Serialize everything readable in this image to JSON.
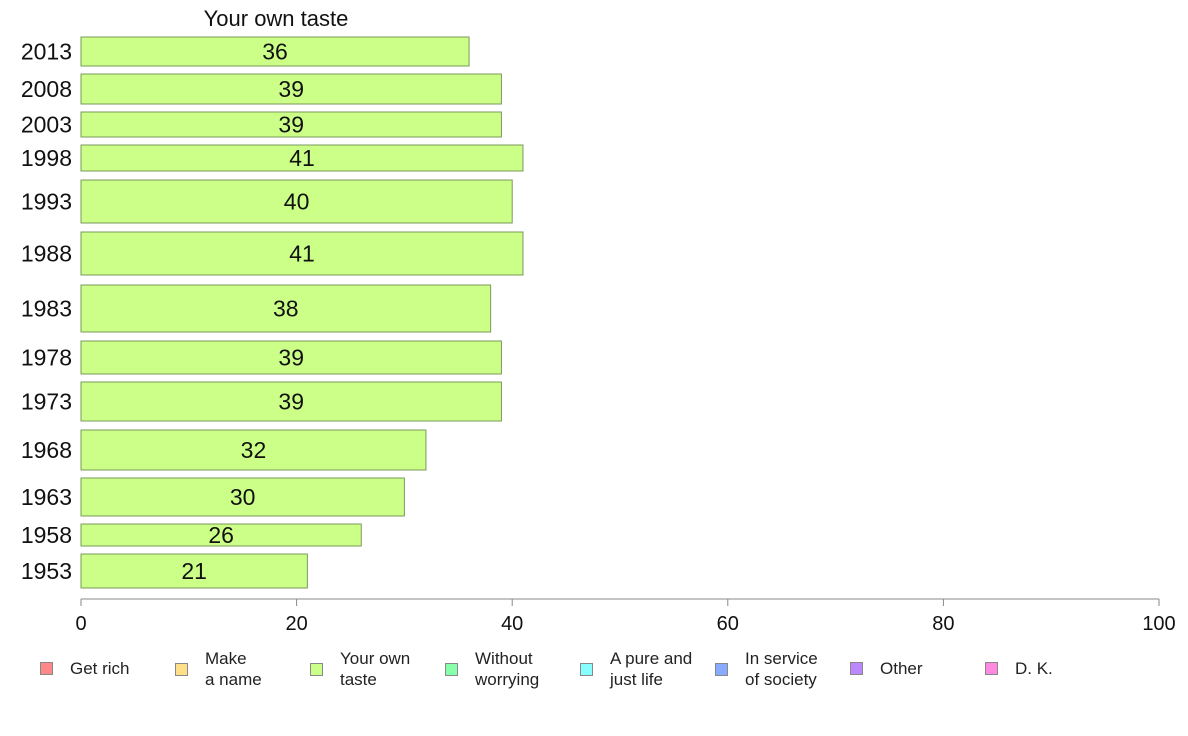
{
  "chart_data": {
    "type": "bar",
    "orientation": "horizontal",
    "title": "Your own taste",
    "categories": [
      "2013",
      "2008",
      "2003",
      "1998",
      "1993",
      "1988",
      "1983",
      "1978",
      "1973",
      "1968",
      "1963",
      "1958",
      "1953"
    ],
    "values": [
      36,
      39,
      39,
      41,
      40,
      41,
      38,
      39,
      39,
      32,
      30,
      26,
      21
    ],
    "value_labels": [
      "36",
      "39",
      "39",
      "41",
      "40",
      "41",
      "38",
      "39",
      "39",
      "32",
      "30",
      "26",
      "21"
    ],
    "xlim": [
      0,
      100
    ],
    "x_ticks": [
      "0",
      "20",
      "40",
      "60",
      "80",
      "100"
    ],
    "grid": false,
    "bar_color": "#ccff88",
    "bar_edge_color": "#7a9a5a",
    "legend": {
      "placement": "bottom",
      "items": [
        {
          "label": "Get rich",
          "color": "#ff8888"
        },
        {
          "label": "Make\na name",
          "color": "#ffe088"
        },
        {
          "label": "Your own\ntaste",
          "color": "#ccff88"
        },
        {
          "label": "Without\nworrying",
          "color": "#88ffaa"
        },
        {
          "label": "A pure and\njust life",
          "color": "#88ffff"
        },
        {
          "label": "In service\nof society",
          "color": "#88aaff"
        },
        {
          "label": "Other",
          "color": "#bb88ff"
        },
        {
          "label": "D. K.",
          "color": "#ff88e0"
        }
      ]
    }
  }
}
